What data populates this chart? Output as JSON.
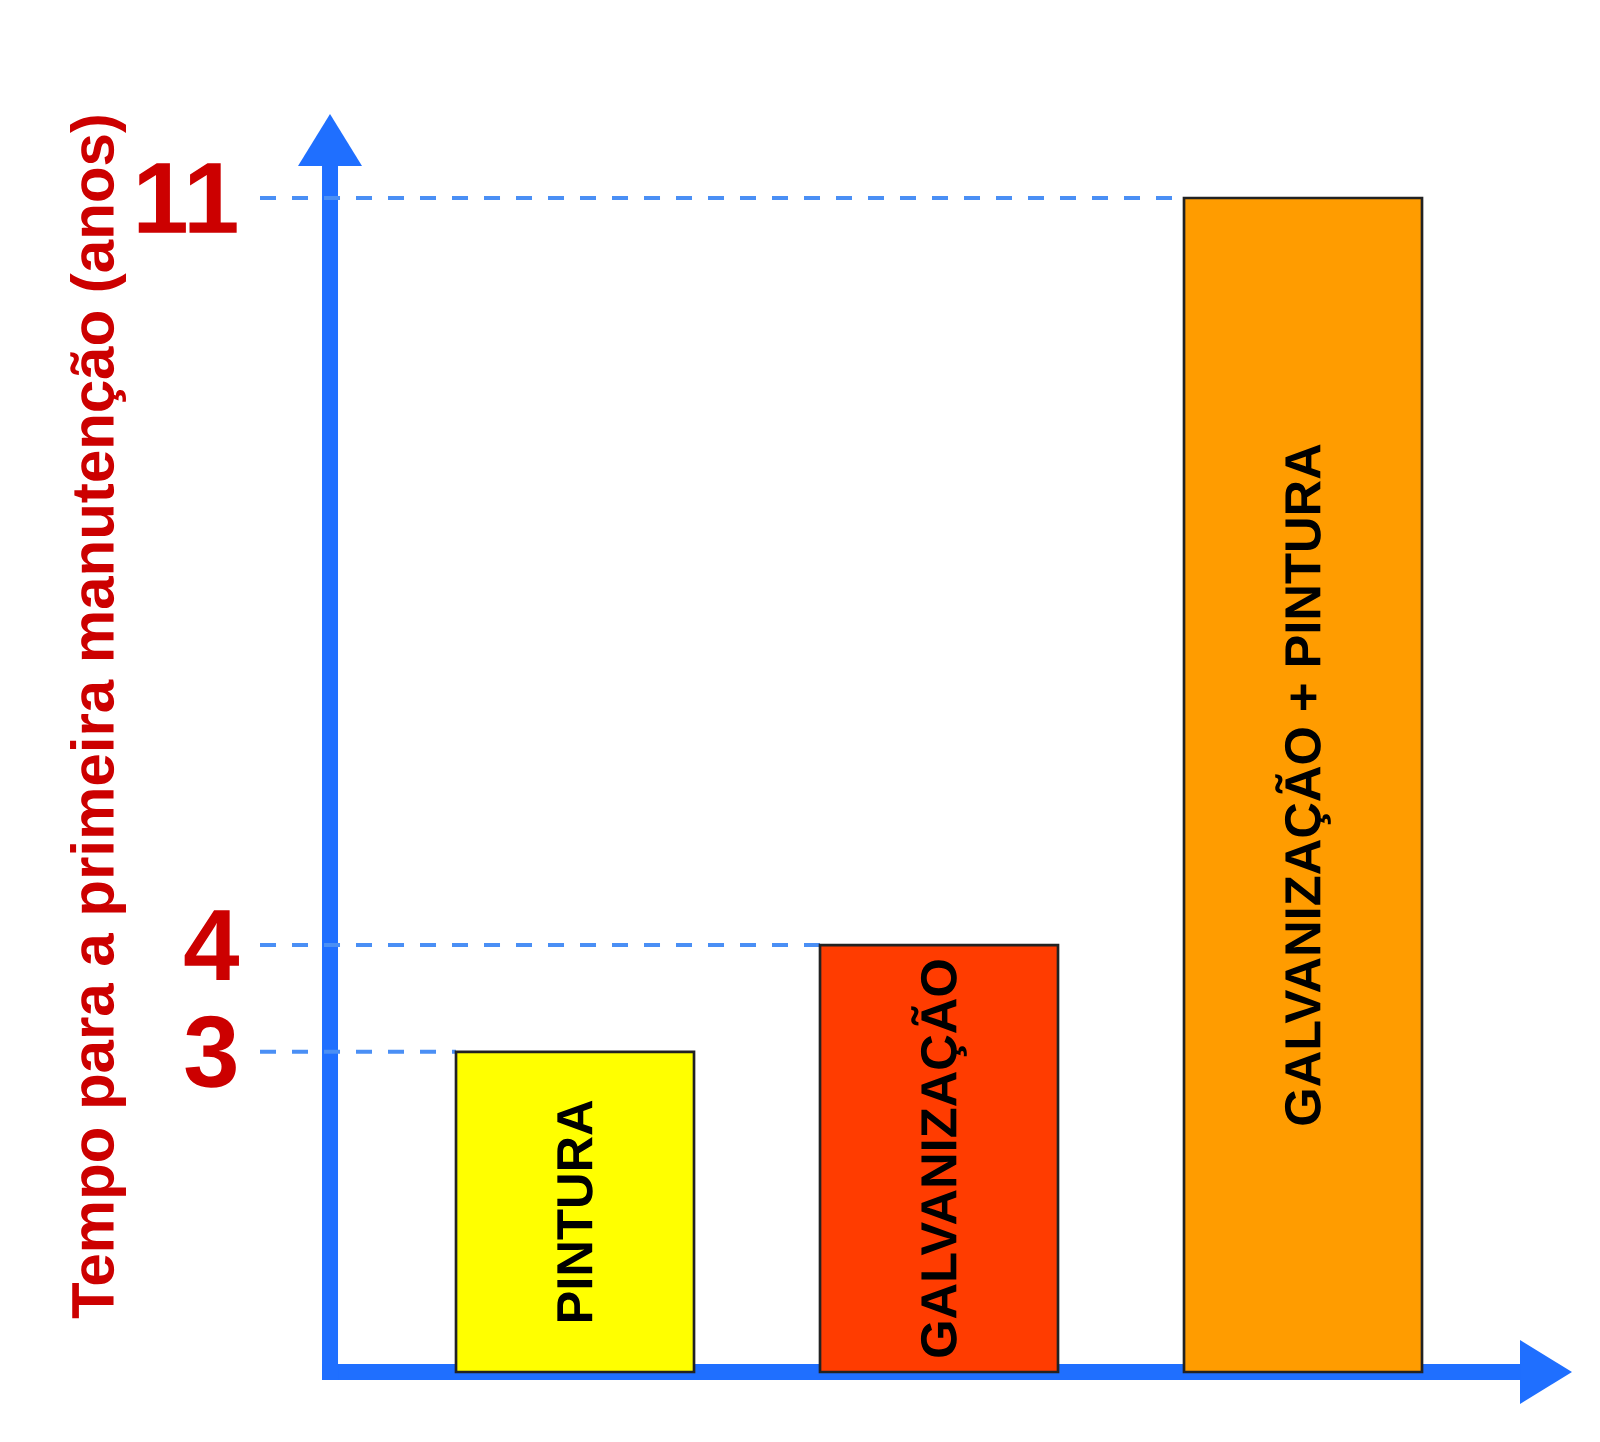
{
  "chart_data": {
    "type": "bar",
    "ylabel": "Tempo para a primeira manutenção (anos)",
    "categories": [
      "PINTURA",
      "GALVANIZAÇÃO",
      "GALVANIZAÇÃO + PINTURA"
    ],
    "values": [
      3,
      4,
      11
    ],
    "colors": [
      "#ffff00",
      "#ff3c00",
      "#ff9c00"
    ],
    "ylim": [
      0,
      11.3
    ],
    "yticks": [
      3,
      4,
      11
    ],
    "ref_lines": [
      {
        "axis": "y",
        "value": 3,
        "color": "#4a8ff5",
        "line_style": "dashed"
      },
      {
        "axis": "y",
        "value": 4,
        "color": "#4a8ff5",
        "line_style": "dashed"
      },
      {
        "axis": "y",
        "value": 11,
        "color": "#4a8ff5",
        "line_style": "dashed"
      }
    ]
  }
}
